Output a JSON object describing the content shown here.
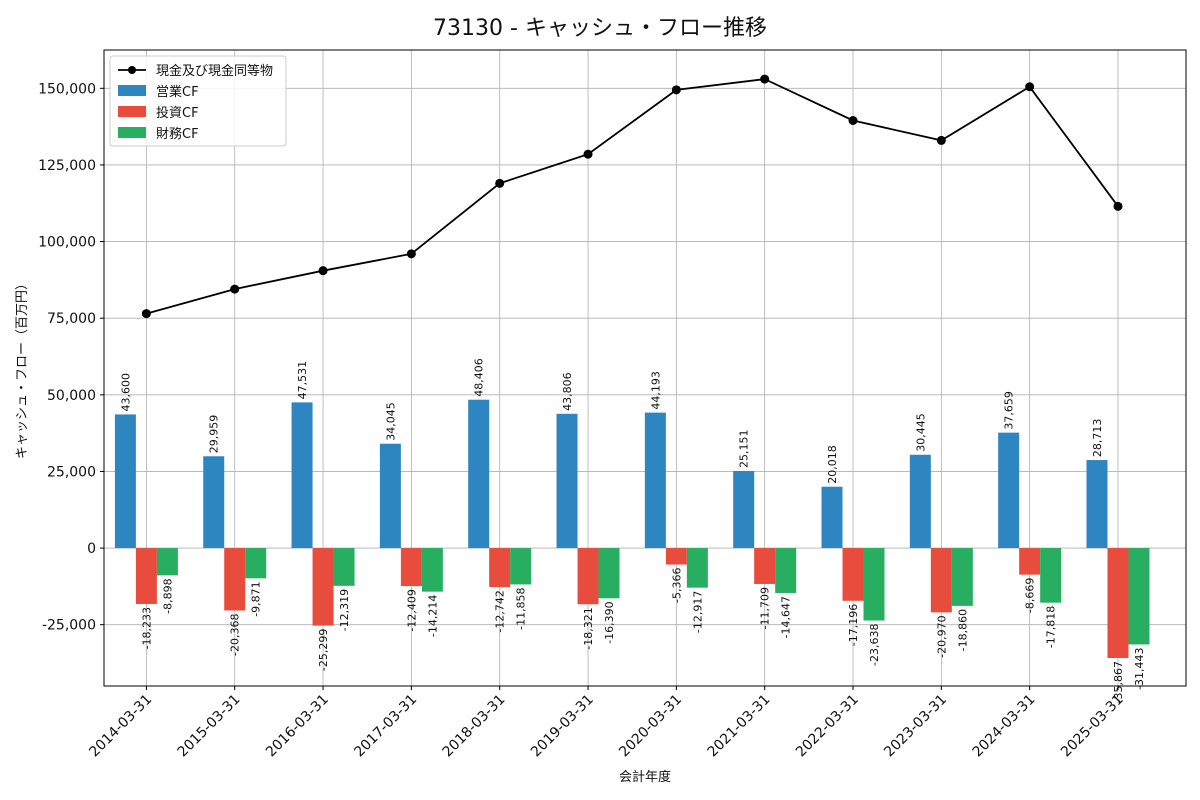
{
  "chart_data": {
    "type": "bar",
    "title": "73130 - キャッシュ・フロー推移",
    "xlabel": "会計年度",
    "ylabel": "キャッシュ・フロー（百万円）",
    "categories": [
      "2014-03-31",
      "2015-03-31",
      "2016-03-31",
      "2017-03-31",
      "2018-03-31",
      "2019-03-31",
      "2020-03-31",
      "2021-03-31",
      "2022-03-31",
      "2023-03-31",
      "2024-03-31",
      "2025-03-31"
    ],
    "ylim": [
      -45000,
      162500
    ],
    "yticks": [
      -25000,
      0,
      25000,
      50000,
      75000,
      100000,
      125000,
      150000
    ],
    "ytick_labels": [
      "-25,000",
      "0",
      "25,000",
      "50,000",
      "75,000",
      "100,000",
      "125,000",
      "150,000"
    ],
    "grid": true,
    "legend_position": "top-left",
    "line": {
      "name": "現金及び現金同等物",
      "color": "#000000",
      "values": [
        76500,
        84500,
        90500,
        96000,
        119000,
        128500,
        149500,
        153000,
        139500,
        133000,
        150500,
        111500
      ]
    },
    "series": [
      {
        "name": "営業CF",
        "color": "#2e86c1",
        "values": [
          43600,
          29959,
          47531,
          34045,
          48406,
          43806,
          44193,
          25151,
          20018,
          30445,
          37659,
          28713
        ],
        "labels": [
          "43,600",
          "29,959",
          "47,531",
          "34,045",
          "48,406",
          "43,806",
          "44,193",
          "25,151",
          "20,018",
          "30,445",
          "37,659",
          "28,713"
        ]
      },
      {
        "name": "投資CF",
        "color": "#e74c3c",
        "values": [
          -18233,
          -20368,
          -25299,
          -12409,
          -12742,
          -18321,
          -5366,
          -11709,
          -17196,
          -20970,
          -8669,
          -35867
        ],
        "labels": [
          "-18,233",
          "-20,368",
          "-25,299",
          "-12,409",
          "-12,742",
          "-18,321",
          "-5,366",
          "-11,709",
          "-17,196",
          "-20,970",
          "-8,669",
          "-35,867"
        ]
      },
      {
        "name": "財務CF",
        "color": "#27ae60",
        "values": [
          -8898,
          -9871,
          -12319,
          -14214,
          -11858,
          -16390,
          -12917,
          -14647,
          -23638,
          -18860,
          -17818,
          -31443
        ],
        "labels": [
          "-8,898",
          "-9,871",
          "-12,319",
          "-14,214",
          "-11,858",
          "-16,390",
          "-12,917",
          "-14,647",
          "-23,638",
          "-18,860",
          "-17,818",
          "-31,443"
        ]
      }
    ]
  }
}
